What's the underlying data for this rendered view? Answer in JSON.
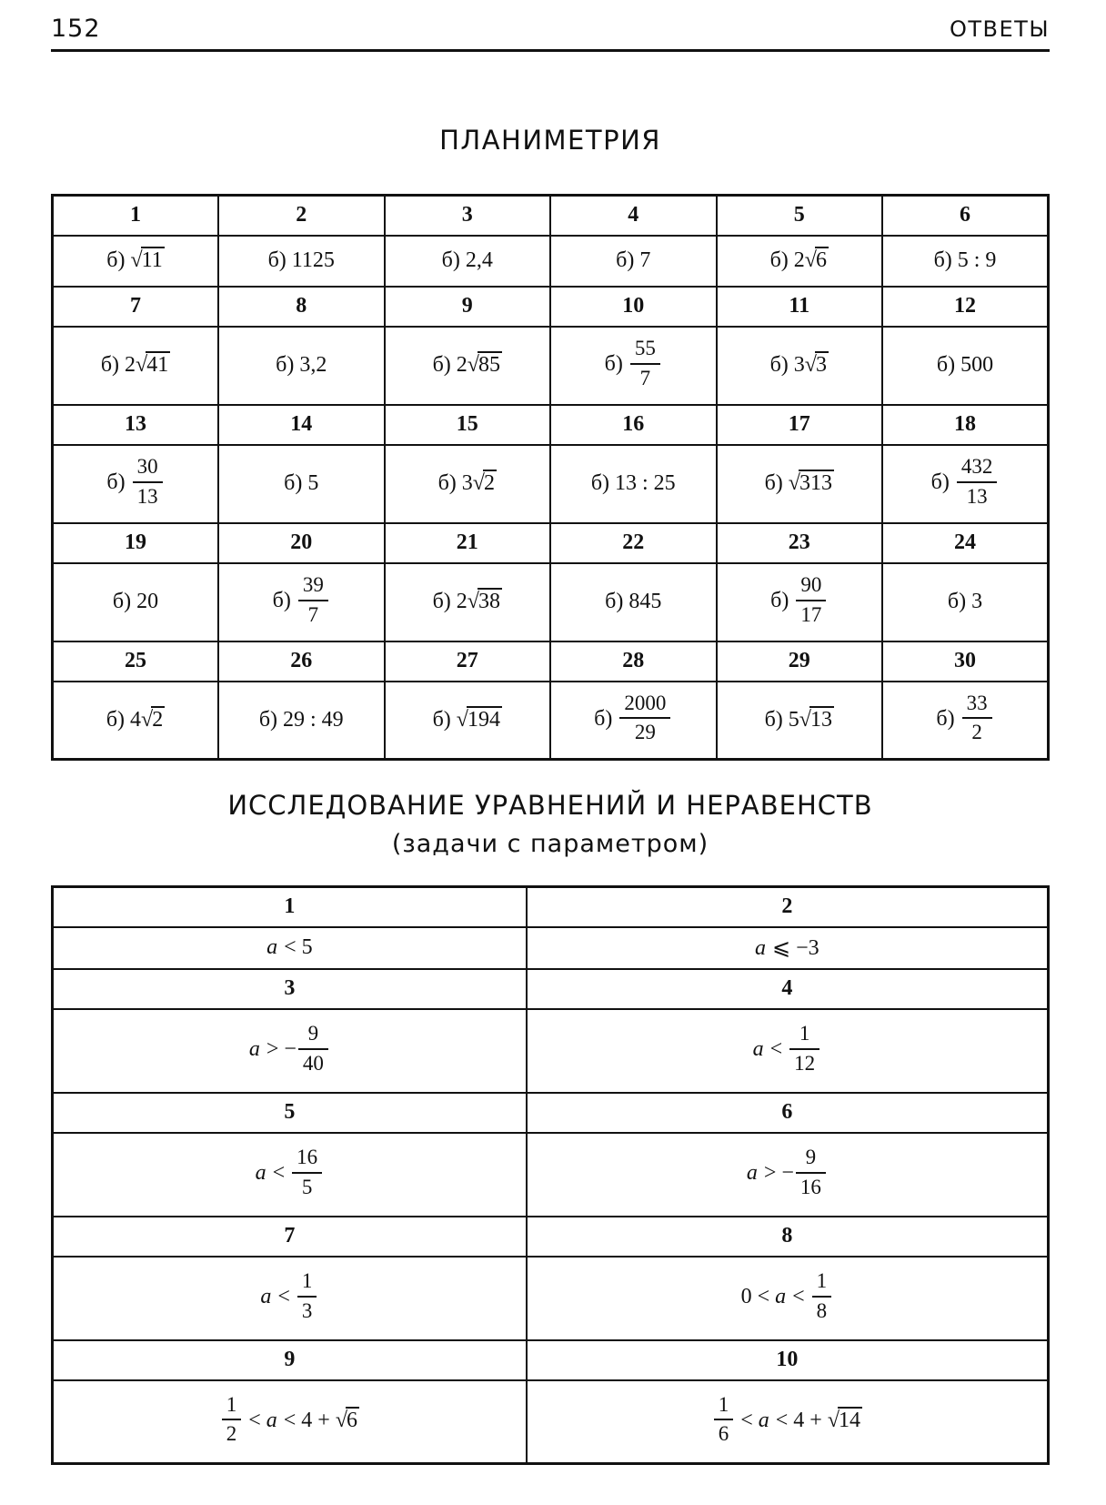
{
  "colors": {
    "ink": "#111111",
    "paper": "#ffffff"
  },
  "header": {
    "page_number": "152",
    "running_title": "ОТВЕТЫ"
  },
  "planimetry": {
    "title": "ПЛАНИМЕТРИЯ",
    "rows": [
      {
        "type": "num",
        "cells": [
          "1",
          "2",
          "3",
          "4",
          "5",
          "6"
        ]
      },
      {
        "type": "ans",
        "cells": [
          [
            {
              "t": "txt",
              "v": "б) "
            },
            {
              "t": "sqrt",
              "v": "11"
            }
          ],
          [
            {
              "t": "txt",
              "v": "б) 1125"
            }
          ],
          [
            {
              "t": "txt",
              "v": "б) 2,4"
            }
          ],
          [
            {
              "t": "txt",
              "v": "б) 7"
            }
          ],
          [
            {
              "t": "txt",
              "v": "б) 2"
            },
            {
              "t": "sqrt",
              "v": "6"
            }
          ],
          [
            {
              "t": "txt",
              "v": "б) 5 : 9"
            }
          ]
        ]
      },
      {
        "type": "num",
        "cells": [
          "7",
          "8",
          "9",
          "10",
          "11",
          "12"
        ]
      },
      {
        "type": "ans",
        "cells": [
          [
            {
              "t": "txt",
              "v": "б) 2"
            },
            {
              "t": "sqrt",
              "v": "41"
            }
          ],
          [
            {
              "t": "txt",
              "v": "б) 3,2"
            }
          ],
          [
            {
              "t": "txt",
              "v": "б) 2"
            },
            {
              "t": "sqrt",
              "v": "85"
            }
          ],
          [
            {
              "t": "txt",
              "v": "б) "
            },
            {
              "t": "frac",
              "n": "55",
              "d": "7"
            }
          ],
          [
            {
              "t": "txt",
              "v": "б) 3"
            },
            {
              "t": "sqrt",
              "v": "3"
            }
          ],
          [
            {
              "t": "txt",
              "v": "б) 500"
            }
          ]
        ]
      },
      {
        "type": "num",
        "cells": [
          "13",
          "14",
          "15",
          "16",
          "17",
          "18"
        ]
      },
      {
        "type": "ans",
        "cells": [
          [
            {
              "t": "txt",
              "v": "б) "
            },
            {
              "t": "frac",
              "n": "30",
              "d": "13"
            }
          ],
          [
            {
              "t": "txt",
              "v": "б) 5"
            }
          ],
          [
            {
              "t": "txt",
              "v": "б) 3"
            },
            {
              "t": "sqrt",
              "v": "2"
            }
          ],
          [
            {
              "t": "txt",
              "v": "б) 13 : 25"
            }
          ],
          [
            {
              "t": "txt",
              "v": "б) "
            },
            {
              "t": "sqrt",
              "v": "313"
            }
          ],
          [
            {
              "t": "txt",
              "v": "б) "
            },
            {
              "t": "frac",
              "n": "432",
              "d": "13"
            }
          ]
        ]
      },
      {
        "type": "num",
        "cells": [
          "19",
          "20",
          "21",
          "22",
          "23",
          "24"
        ]
      },
      {
        "type": "ans",
        "cells": [
          [
            {
              "t": "txt",
              "v": "б) 20"
            }
          ],
          [
            {
              "t": "txt",
              "v": "б) "
            },
            {
              "t": "frac",
              "n": "39",
              "d": "7"
            }
          ],
          [
            {
              "t": "txt",
              "v": "б) 2"
            },
            {
              "t": "sqrt",
              "v": "38"
            }
          ],
          [
            {
              "t": "txt",
              "v": "б) 845"
            }
          ],
          [
            {
              "t": "txt",
              "v": "б) "
            },
            {
              "t": "frac",
              "n": "90",
              "d": "17"
            }
          ],
          [
            {
              "t": "txt",
              "v": "б) 3"
            }
          ]
        ]
      },
      {
        "type": "num",
        "cells": [
          "25",
          "26",
          "27",
          "28",
          "29",
          "30"
        ]
      },
      {
        "type": "ans",
        "cells": [
          [
            {
              "t": "txt",
              "v": "б) 4"
            },
            {
              "t": "sqrt",
              "v": "2"
            }
          ],
          [
            {
              "t": "txt",
              "v": "б) 29 : 49"
            }
          ],
          [
            {
              "t": "txt",
              "v": "б) "
            },
            {
              "t": "sqrt",
              "v": "194"
            }
          ],
          [
            {
              "t": "txt",
              "v": "б) "
            },
            {
              "t": "frac",
              "n": "2000",
              "d": "29"
            }
          ],
          [
            {
              "t": "txt",
              "v": "б) 5"
            },
            {
              "t": "sqrt",
              "v": "13"
            }
          ],
          [
            {
              "t": "txt",
              "v": "б) "
            },
            {
              "t": "frac",
              "n": "33",
              "d": "2"
            }
          ]
        ]
      }
    ]
  },
  "parameters": {
    "title_line1": "ИССЛЕДОВАНИЕ УРАВНЕНИЙ И НЕРАВЕНСТВ",
    "title_line2": "(задачи с параметром)",
    "rows": [
      {
        "type": "num",
        "cells": [
          "1",
          "2"
        ]
      },
      {
        "type": "ans",
        "cells": [
          [
            {
              "t": "it",
              "v": "a"
            },
            {
              "t": "txt",
              "v": " < 5"
            }
          ],
          [
            {
              "t": "it",
              "v": "a"
            },
            {
              "t": "txt",
              "v": " ⩽ −3"
            }
          ]
        ]
      },
      {
        "type": "num",
        "cells": [
          "3",
          "4"
        ]
      },
      {
        "type": "ans",
        "cells": [
          [
            {
              "t": "it",
              "v": "a"
            },
            {
              "t": "txt",
              "v": " > −"
            },
            {
              "t": "frac",
              "n": "9",
              "d": "40"
            }
          ],
          [
            {
              "t": "it",
              "v": "a"
            },
            {
              "t": "txt",
              "v": " < "
            },
            {
              "t": "frac",
              "n": "1",
              "d": "12"
            }
          ]
        ]
      },
      {
        "type": "num",
        "cells": [
          "5",
          "6"
        ]
      },
      {
        "type": "ans",
        "cells": [
          [
            {
              "t": "it",
              "v": "a"
            },
            {
              "t": "txt",
              "v": " < "
            },
            {
              "t": "frac",
              "n": "16",
              "d": "5"
            }
          ],
          [
            {
              "t": "it",
              "v": "a"
            },
            {
              "t": "txt",
              "v": " > −"
            },
            {
              "t": "frac",
              "n": "9",
              "d": "16"
            }
          ]
        ]
      },
      {
        "type": "num",
        "cells": [
          "7",
          "8"
        ]
      },
      {
        "type": "ans",
        "cells": [
          [
            {
              "t": "it",
              "v": "a"
            },
            {
              "t": "txt",
              "v": " < "
            },
            {
              "t": "frac",
              "n": "1",
              "d": "3"
            }
          ],
          [
            {
              "t": "txt",
              "v": "0 < "
            },
            {
              "t": "it",
              "v": "a"
            },
            {
              "t": "txt",
              "v": " < "
            },
            {
              "t": "frac",
              "n": "1",
              "d": "8"
            }
          ]
        ]
      },
      {
        "type": "num",
        "cells": [
          "9",
          "10"
        ]
      },
      {
        "type": "ans",
        "cells": [
          [
            {
              "t": "frac",
              "n": "1",
              "d": "2"
            },
            {
              "t": "txt",
              "v": " < "
            },
            {
              "t": "it",
              "v": "a"
            },
            {
              "t": "txt",
              "v": " < 4 + "
            },
            {
              "t": "sqrt",
              "v": "6"
            }
          ],
          [
            {
              "t": "frac",
              "n": "1",
              "d": "6"
            },
            {
              "t": "txt",
              "v": " < "
            },
            {
              "t": "it",
              "v": "a"
            },
            {
              "t": "txt",
              "v": " < 4 + "
            },
            {
              "t": "sqrt",
              "v": "14"
            }
          ]
        ]
      }
    ]
  }
}
